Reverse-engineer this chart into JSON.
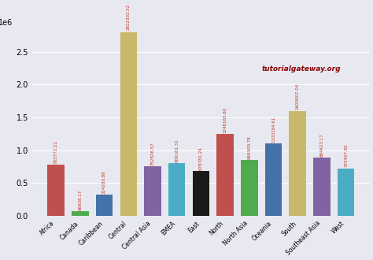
{
  "categories": [
    "Africa",
    "Canada",
    "Caribbean",
    "Central",
    "Central Asia",
    "EMEA",
    "East",
    "North",
    "North Asia",
    "Oceania",
    "South",
    "Southeast Asia",
    "West"
  ],
  "values": [
    783773.21,
    66928.17,
    324280.86,
    2822302.52,
    752826.57,
    806161.31,
    678781.24,
    1248165.6,
    848309.78,
    1100184.61,
    1600907.04,
    884423.17,
    725457.82
  ],
  "bar_colors": [
    "#c0504d",
    "#4eac4f",
    "#4472a8",
    "#c8b96a",
    "#8064a2",
    "#4bacc6",
    "#1a1a1a",
    "#c0504d",
    "#4eac4f",
    "#4472a8",
    "#c8b96a",
    "#8064a2",
    "#4bacc6"
  ],
  "background_color": "#e8e8f0",
  "annotation_color": "#c0392b",
  "watermark_text": "tutorialgateway.org",
  "watermark_color": "#8b0000",
  "ylim": [
    0,
    2800000
  ],
  "yticks": [
    0.0,
    0.5,
    1.0,
    1.5,
    2.0,
    2.5
  ]
}
